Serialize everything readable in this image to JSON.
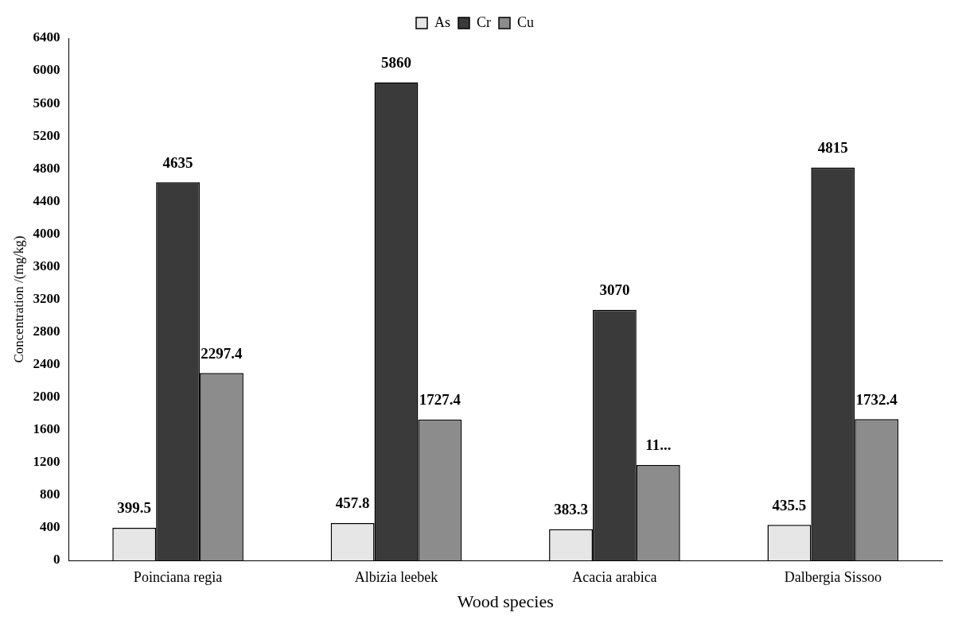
{
  "chart_data": {
    "type": "bar",
    "xlabel": "Wood species",
    "ylabel": "Concentration /(mg/kg)",
    "categories": [
      "Poinciana regia",
      "Albizia leebek",
      "Acacia arabica",
      "Dalbergia Sissoo"
    ],
    "series": [
      {
        "name": "As",
        "color": "#e6e6e6",
        "values": [
          399.5,
          457.8,
          383.3,
          435.5
        ],
        "value_labels": [
          "399.5",
          "457.8",
          "383.3",
          "435.5"
        ]
      },
      {
        "name": "Cr",
        "color": "#3a3a3a",
        "values": [
          4635,
          5860,
          3070,
          4815
        ],
        "value_labels": [
          "4635",
          "5860",
          "3070",
          "4815"
        ]
      },
      {
        "name": "Cu",
        "color": "#8c8c8c",
        "values": [
          2297.4,
          1727.4,
          1170,
          1732.4
        ],
        "value_labels": [
          "2297.4",
          "1727.4",
          "11...",
          "1732.4"
        ]
      }
    ],
    "ylim": [
      0,
      6400
    ],
    "yticks": [
      0,
      400,
      800,
      1200,
      1600,
      2000,
      2400,
      2800,
      3200,
      3600,
      4000,
      4400,
      4800,
      5200,
      5600,
      6000,
      6400
    ],
    "grid": false,
    "legend": "top"
  }
}
